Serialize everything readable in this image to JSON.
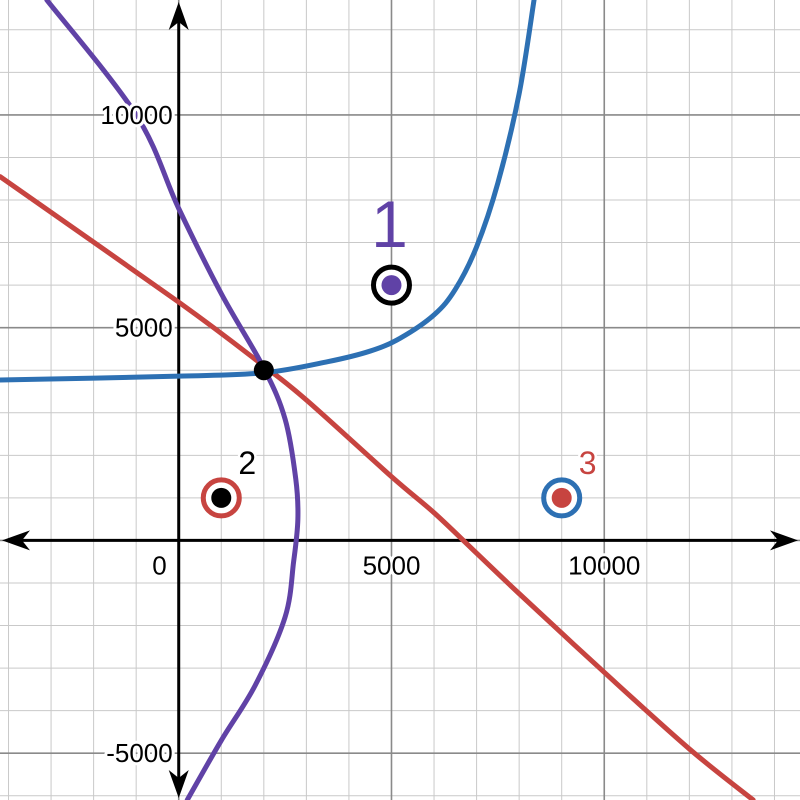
{
  "chart_data": {
    "type": "scatter",
    "title": "",
    "xlabel": "",
    "ylabel": "",
    "xlim": [
      -4200,
      14600
    ],
    "ylim": [
      -6100,
      12700
    ],
    "grid": true,
    "minor_grid_step": 1000,
    "major_grid_step": 5000,
    "x_ticks": [
      {
        "value": 0,
        "label": "0"
      },
      {
        "value": 5000,
        "label": "5000"
      },
      {
        "value": 10000,
        "label": "10000"
      }
    ],
    "y_ticks": [
      {
        "value": 10000,
        "label": "10000"
      },
      {
        "value": 5000,
        "label": "5000"
      },
      {
        "value": -5000,
        "label": "-5000"
      }
    ],
    "curves": [
      {
        "color": "#c74440",
        "points": [
          [
            -4200,
            8550
          ],
          [
            0,
            5600
          ],
          [
            2000,
            4100
          ],
          [
            3000,
            3300
          ],
          [
            5000,
            1500
          ],
          [
            6000,
            650
          ],
          [
            7000,
            -300
          ],
          [
            8000,
            -1250
          ],
          [
            10000,
            -3100
          ],
          [
            12000,
            -4900
          ],
          [
            13500,
            -6100
          ]
        ]
      },
      {
        "color": "#2d70b3",
        "points": [
          [
            -4200,
            3770
          ],
          [
            0,
            3860
          ],
          [
            2000,
            3940
          ],
          [
            3500,
            4200
          ],
          [
            4500,
            4450
          ],
          [
            5200,
            4750
          ],
          [
            6000,
            5300
          ],
          [
            6500,
            5900
          ],
          [
            7000,
            6900
          ],
          [
            7500,
            8400
          ],
          [
            8000,
            10500
          ],
          [
            8350,
            12700
          ]
        ]
      },
      {
        "color": "#6042a6",
        "points": [
          [
            -3100,
            12700
          ],
          [
            -1000,
            10000
          ],
          [
            0,
            7800
          ],
          [
            1000,
            5800
          ],
          [
            2000,
            4050
          ],
          [
            2500,
            2850
          ],
          [
            2750,
            1450
          ],
          [
            2800,
            500
          ],
          [
            2700,
            -500
          ],
          [
            2500,
            -1800
          ],
          [
            1800,
            -3400
          ],
          [
            1000,
            -4700
          ],
          [
            200,
            -6100
          ]
        ]
      }
    ],
    "intersection_point": {
      "x": 2000,
      "y": 4000,
      "color": "#000000"
    },
    "marked_points": [
      {
        "label": "1",
        "x": 5000,
        "y": 6000,
        "fill": "#6042a6",
        "ring": "#000000",
        "label_color": "#6042a6"
      },
      {
        "label": "2",
        "x": 1000,
        "y": 1000,
        "fill": "#000000",
        "ring": "#c74440",
        "label_color": "#000000"
      },
      {
        "label": "3",
        "x": 9000,
        "y": 1000,
        "fill": "#c74440",
        "ring": "#2d70b3",
        "label_color": "#c74440"
      }
    ]
  }
}
